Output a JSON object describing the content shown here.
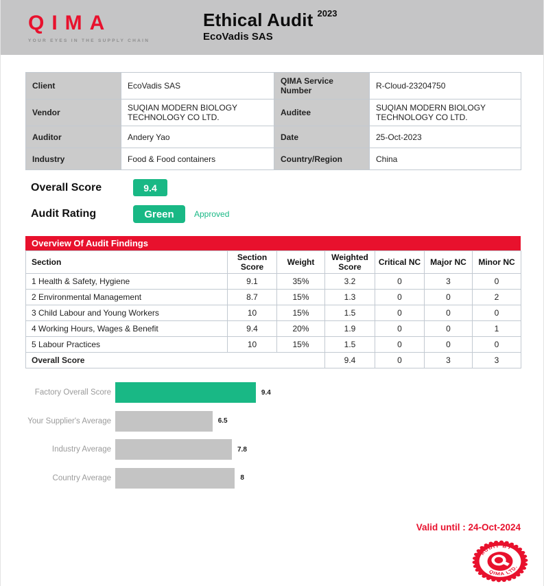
{
  "colors": {
    "brand_red": "#e8112d",
    "green": "#19b885",
    "header_gray": "#c5c5c6",
    "label_cell_gray": "#cbcbcb",
    "bar_gray": "#c4c4c4"
  },
  "header": {
    "logo_text": "QIMA",
    "logo_tagline": "YOUR EYES IN THE SUPPLY CHAIN",
    "title": "Ethical Audit",
    "title_year": "2023",
    "subtitle": "EcoVadis SAS"
  },
  "info_table": {
    "rows": [
      [
        "Client",
        "EcoVadis SAS",
        "QIMA Service Number",
        "R-Cloud-23204750"
      ],
      [
        "Vendor",
        "SUQIAN MODERN BIOLOGY TECHNOLOGY CO LTD.",
        "Auditee",
        "SUQIAN MODERN BIOLOGY TECHNOLOGY CO LTD."
      ],
      [
        "Auditor",
        "Andery Yao",
        "Date",
        "25-Oct-2023"
      ],
      [
        "Industry",
        "Food & Food containers",
        "Country/Region",
        "China"
      ]
    ]
  },
  "scores": {
    "overall_label": "Overall Score",
    "overall_value": "9.4",
    "rating_label": "Audit Rating",
    "rating_value": "Green",
    "rating_status": "Approved"
  },
  "findings": {
    "title": "Overview Of Audit Findings",
    "columns": [
      "Section",
      "Section Score",
      "Weight",
      "Weighted Score",
      "Critical NC",
      "Major NC",
      "Minor NC"
    ],
    "rows": [
      [
        "1 Health & Safety, Hygiene",
        "9.1",
        "35%",
        "3.2",
        "0",
        "3",
        "0"
      ],
      [
        "2 Environmental Management",
        "8.7",
        "15%",
        "1.3",
        "0",
        "0",
        "2"
      ],
      [
        "3 Child Labour and Young Workers",
        "10",
        "15%",
        "1.5",
        "0",
        "0",
        "0"
      ],
      [
        "4 Working Hours, Wages & Benefit",
        "9.4",
        "20%",
        "1.9",
        "0",
        "0",
        "1"
      ],
      [
        "5 Labour Practices",
        "10",
        "15%",
        "1.5",
        "0",
        "0",
        "0"
      ]
    ],
    "total_row": {
      "label": "Overall Score",
      "values": [
        "9.4",
        "0",
        "3",
        "3"
      ]
    }
  },
  "chart_data": {
    "type": "bar",
    "orientation": "horizontal",
    "categories": [
      "Factory Overall Score",
      "Your Supplier's Average",
      "Industry Average",
      "Country Average"
    ],
    "values": [
      9.4,
      6.5,
      7.8,
      8
    ],
    "value_labels": [
      "9.4",
      "6.5",
      "7.8",
      "8"
    ],
    "bar_colors": [
      "#19b885",
      "#c4c4c4",
      "#c4c4c4",
      "#c4c4c4"
    ],
    "xlim": [
      0,
      10
    ],
    "title": "",
    "xlabel": "",
    "ylabel": "",
    "grid": false,
    "legend": false
  },
  "footer": {
    "valid_until": "Valid until : 24-Oct-2024",
    "stamp": {
      "top_text": "AUDIT BY",
      "bottom_text": "QIMA LTD."
    }
  }
}
